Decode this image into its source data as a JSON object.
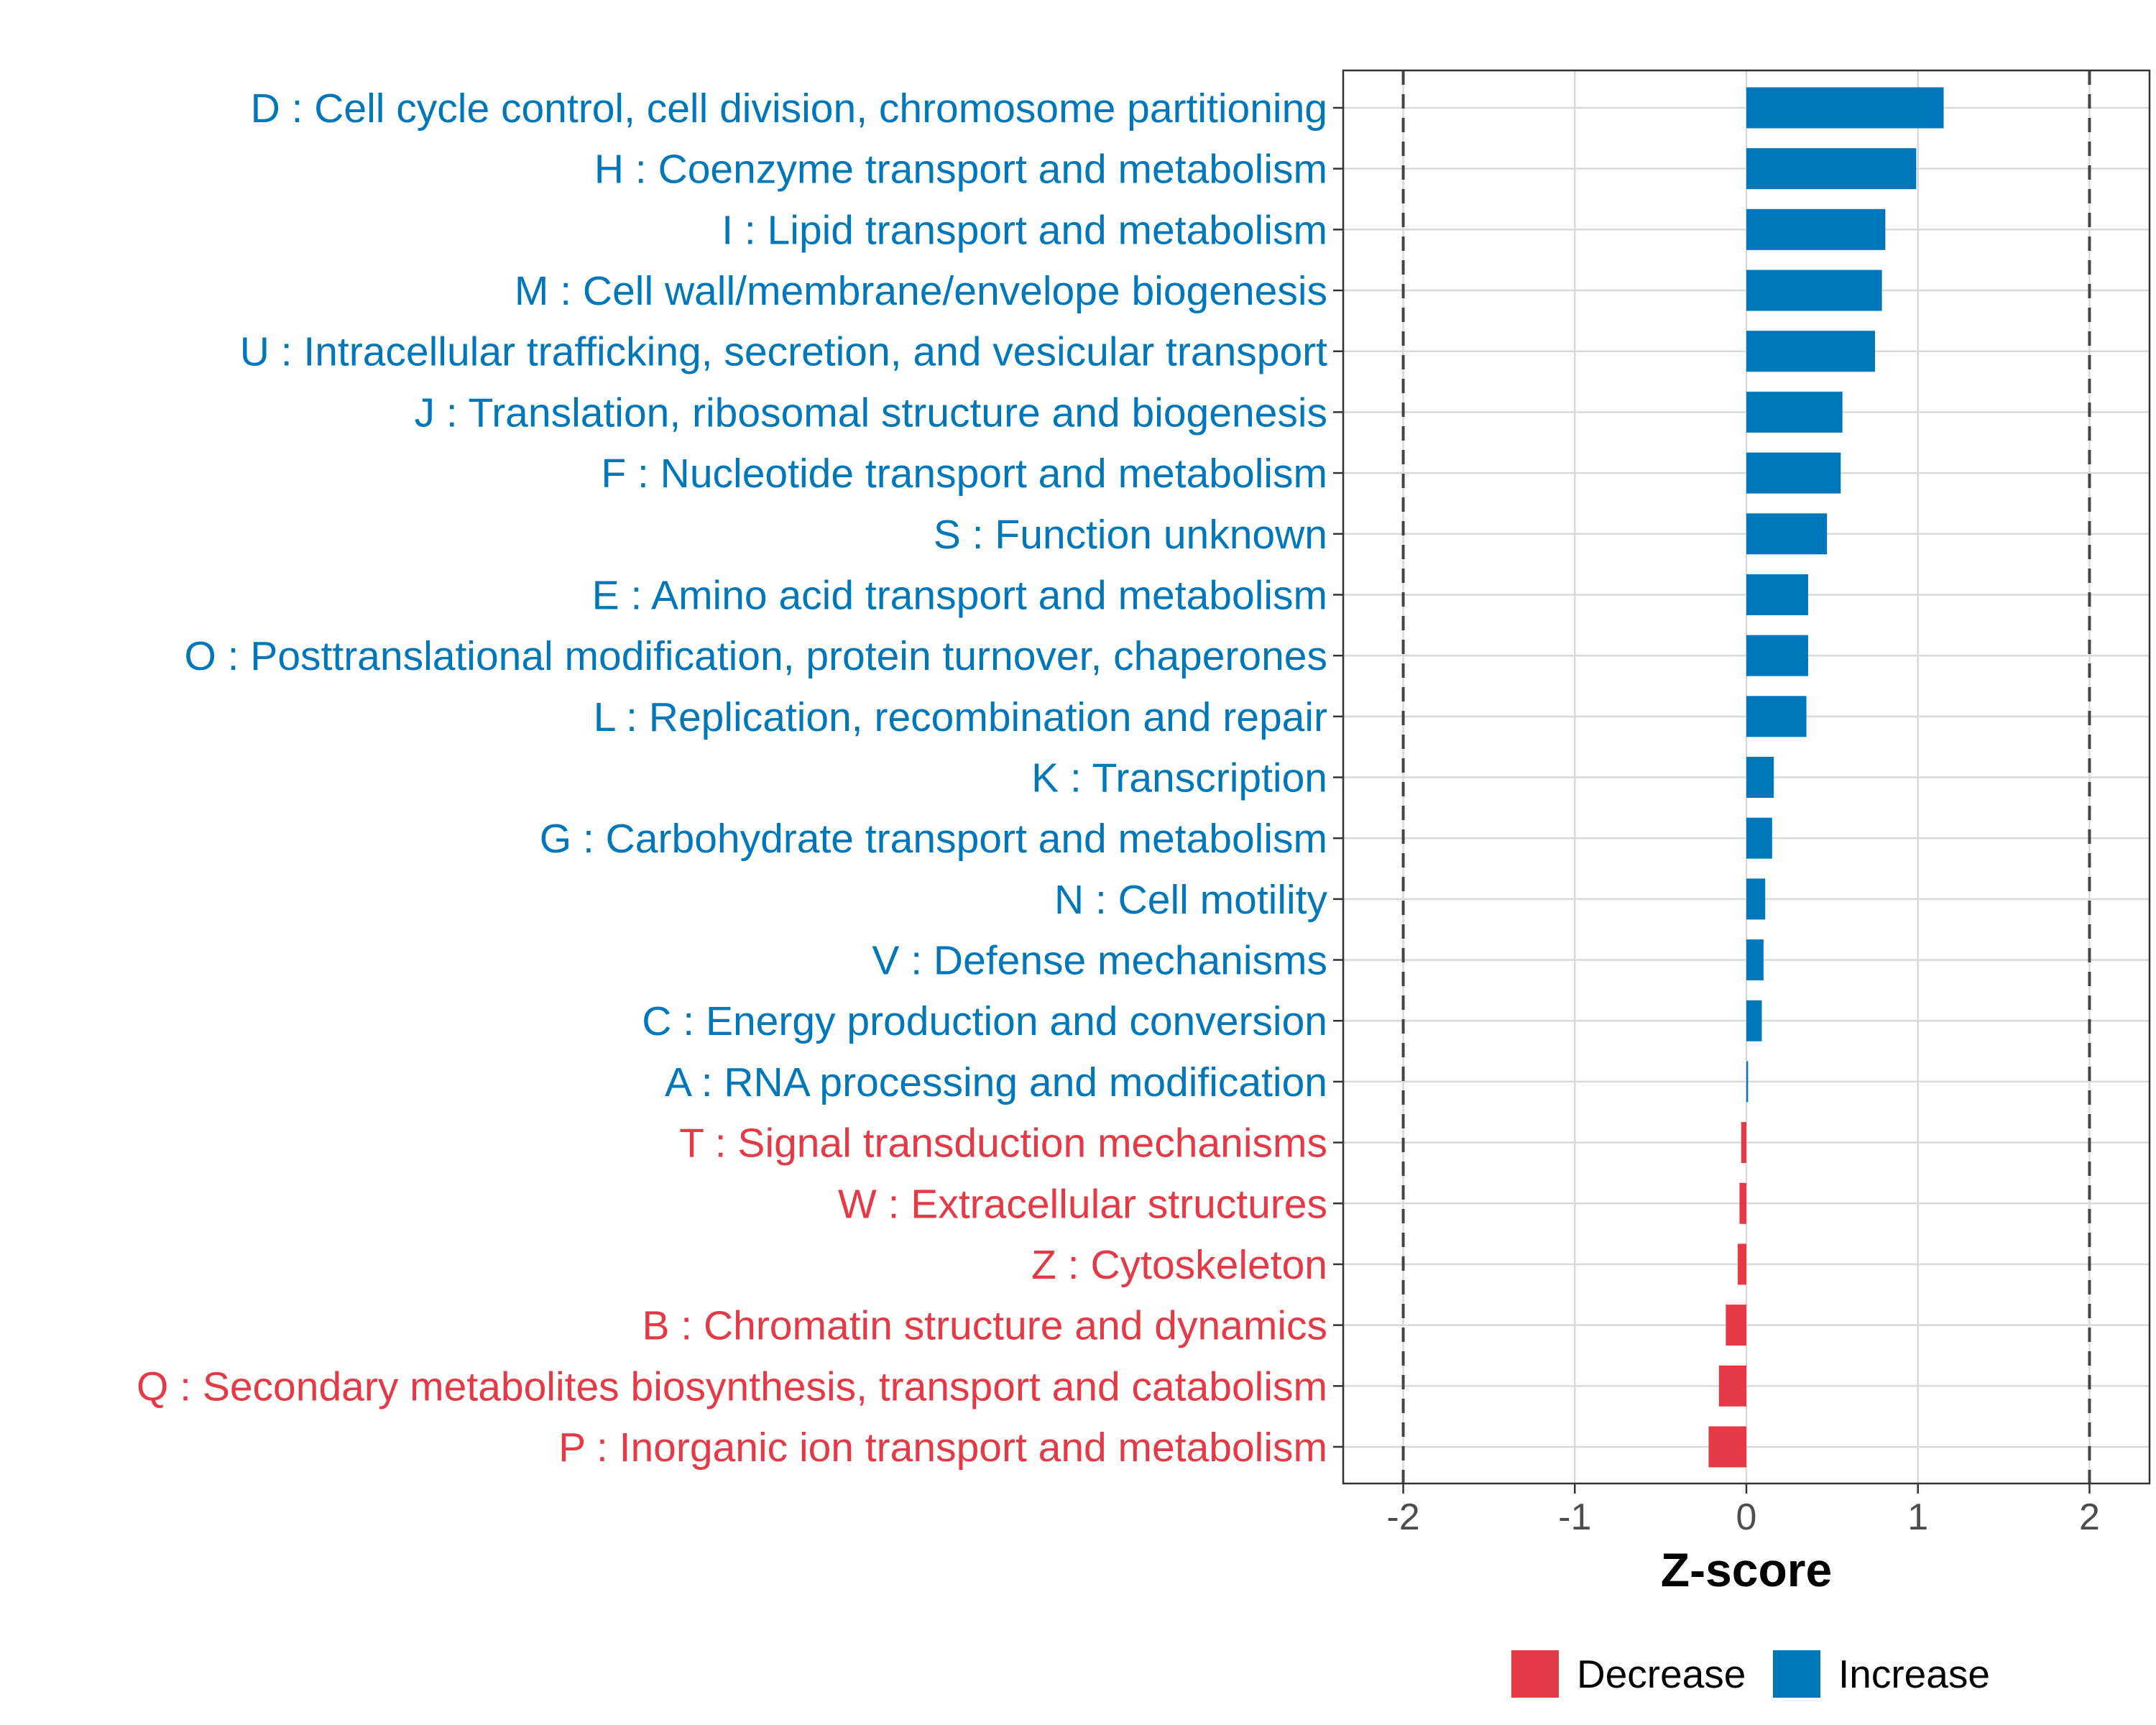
{
  "chart_data": {
    "type": "bar",
    "orientation": "horizontal",
    "xlabel": "Z-score",
    "xlim": [
      -2.35,
      2.35
    ],
    "xticks": [
      -2,
      -1,
      0,
      1,
      2
    ],
    "xtick_labels": [
      "-2",
      "-1",
      "0",
      "1",
      "2"
    ],
    "reference_lines": [
      -2,
      2
    ],
    "grid": true,
    "legend_position": "bottom",
    "colors": {
      "Decrease": "#E63946",
      "Increase": "#0077BB"
    },
    "legend": [
      {
        "label": "Decrease",
        "color": "#E63946"
      },
      {
        "label": "Increase",
        "color": "#0077BB"
      }
    ],
    "bars": [
      {
        "label": "D : Cell cycle control, cell division, chromosome partitioning",
        "value": 1.15,
        "direction": "Increase"
      },
      {
        "label": "H : Coenzyme transport and metabolism",
        "value": 0.99,
        "direction": "Increase"
      },
      {
        "label": "I : Lipid transport and metabolism",
        "value": 0.81,
        "direction": "Increase"
      },
      {
        "label": "M : Cell wall/membrane/envelope biogenesis",
        "value": 0.79,
        "direction": "Increase"
      },
      {
        "label": "U : Intracellular trafficking, secretion, and vesicular transport",
        "value": 0.75,
        "direction": "Increase"
      },
      {
        "label": "J : Translation, ribosomal structure and biogenesis",
        "value": 0.56,
        "direction": "Increase"
      },
      {
        "label": "F : Nucleotide transport and metabolism",
        "value": 0.55,
        "direction": "Increase"
      },
      {
        "label": "S : Function unknown",
        "value": 0.47,
        "direction": "Increase"
      },
      {
        "label": "E : Amino acid transport and metabolism",
        "value": 0.36,
        "direction": "Increase"
      },
      {
        "label": "O : Posttranslational modification, protein turnover, chaperones",
        "value": 0.36,
        "direction": "Increase"
      },
      {
        "label": "L : Replication, recombination and repair",
        "value": 0.35,
        "direction": "Increase"
      },
      {
        "label": "K : Transcription",
        "value": 0.16,
        "direction": "Increase"
      },
      {
        "label": "G : Carbohydrate transport and metabolism",
        "value": 0.15,
        "direction": "Increase"
      },
      {
        "label": "N : Cell motility",
        "value": 0.11,
        "direction": "Increase"
      },
      {
        "label": "V : Defense mechanisms",
        "value": 0.1,
        "direction": "Increase"
      },
      {
        "label": "C : Energy production and conversion",
        "value": 0.09,
        "direction": "Increase"
      },
      {
        "label": "A : RNA processing and modification",
        "value": 0.01,
        "direction": "Increase"
      },
      {
        "label": "T : Signal transduction mechanisms",
        "value": -0.03,
        "direction": "Decrease"
      },
      {
        "label": "W : Extracellular structures",
        "value": -0.04,
        "direction": "Decrease"
      },
      {
        "label": "Z : Cytoskeleton",
        "value": -0.05,
        "direction": "Decrease"
      },
      {
        "label": "B : Chromatin structure and dynamics",
        "value": -0.12,
        "direction": "Decrease"
      },
      {
        "label": "Q : Secondary metabolites biosynthesis, transport and catabolism",
        "value": -0.16,
        "direction": "Decrease"
      },
      {
        "label": "P : Inorganic ion transport and metabolism",
        "value": -0.22,
        "direction": "Decrease"
      }
    ]
  }
}
